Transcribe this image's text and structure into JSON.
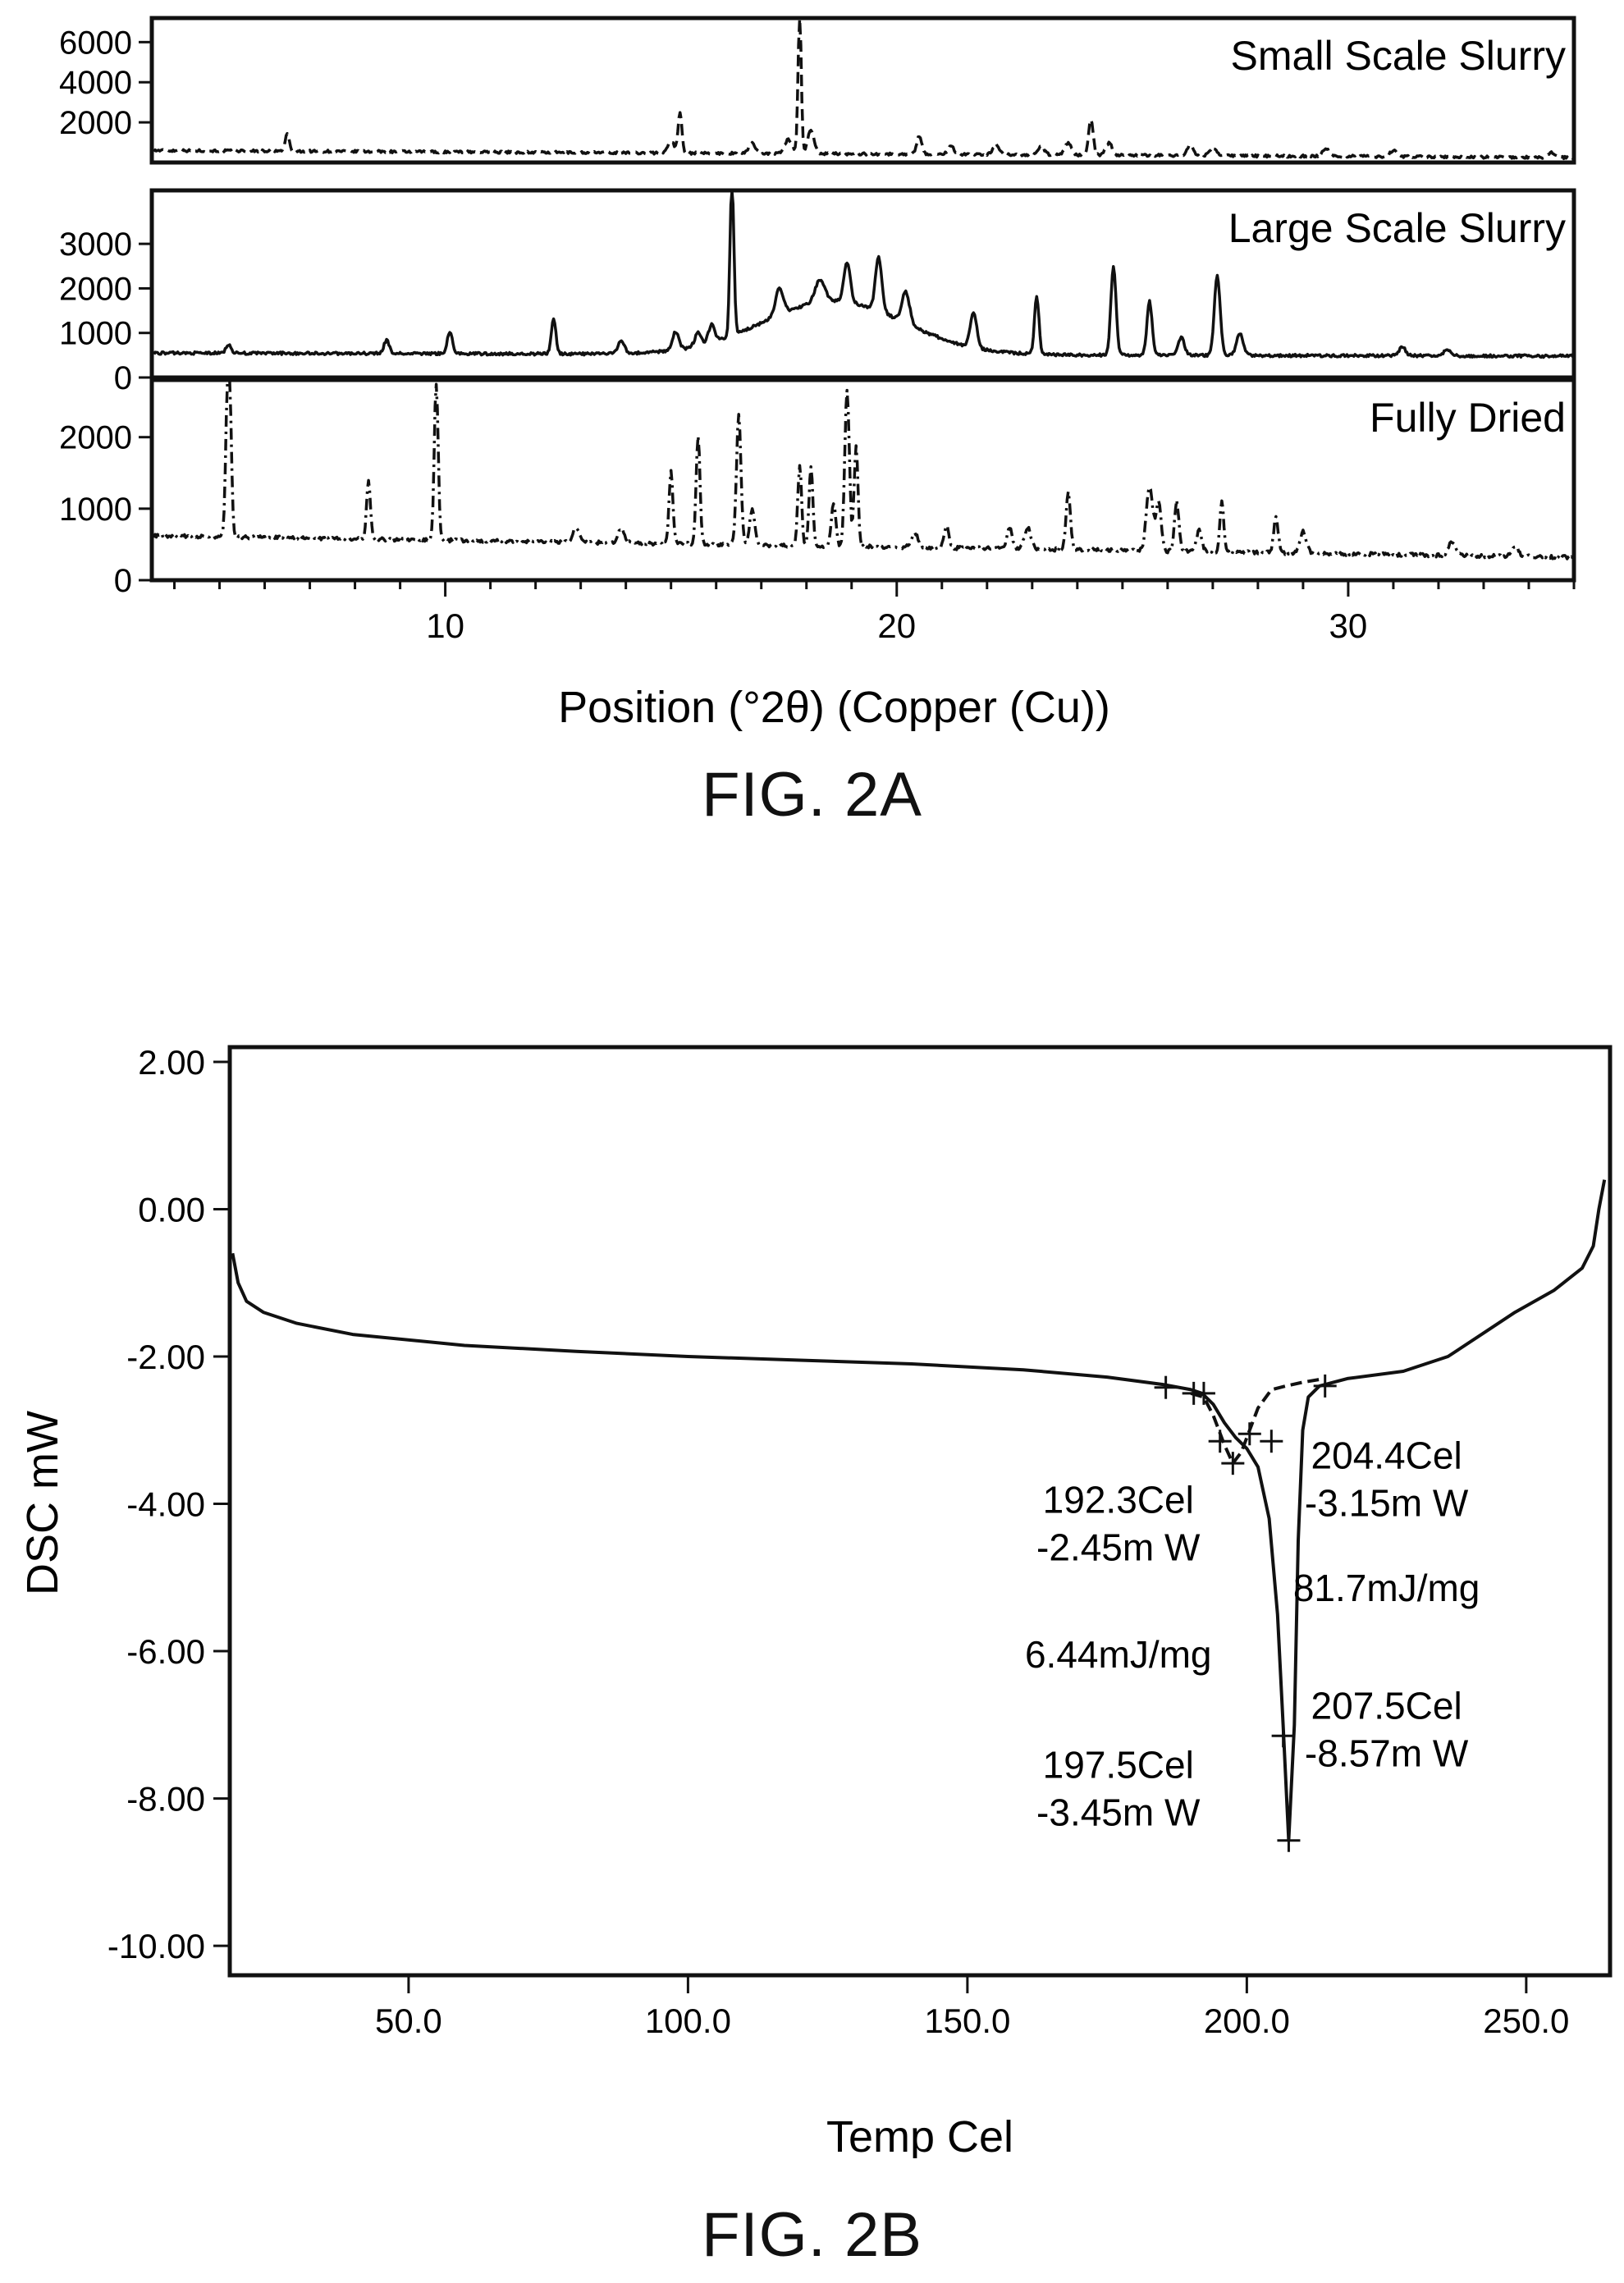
{
  "chart_data": [
    {
      "id": "fig-2a",
      "type": "line",
      "figure_label": "FIG. 2A",
      "xlabel": "Position (°2θ) (Copper (Cu))",
      "xlim": [
        3.5,
        35
      ],
      "xticks": [
        10,
        20,
        30
      ],
      "panels": [
        {
          "name": "Small Scale Slurry",
          "line_style": "dashed",
          "ylim": [
            0,
            7200
          ],
          "yticks": [
            2000,
            4000,
            6000
          ],
          "baseline": 600,
          "baseline_end": 250,
          "noise": 120,
          "peaks": [
            [
              6.5,
              900,
              0.06
            ],
            [
              15.0,
              600,
              0.1
            ],
            [
              15.2,
              2000,
              0.06
            ],
            [
              16.8,
              500,
              0.1
            ],
            [
              17.6,
              700,
              0.12
            ],
            [
              17.85,
              7000,
              0.05
            ],
            [
              18.1,
              1200,
              0.1
            ],
            [
              20.5,
              900,
              0.08
            ],
            [
              21.2,
              400,
              0.1
            ],
            [
              22.2,
              500,
              0.1
            ],
            [
              23.2,
              400,
              0.1
            ],
            [
              23.8,
              600,
              0.1
            ],
            [
              24.3,
              1800,
              0.07
            ],
            [
              24.7,
              600,
              0.1
            ],
            [
              26.5,
              500,
              0.1
            ],
            [
              27.0,
              400,
              0.1
            ],
            [
              29.5,
              400,
              0.1
            ],
            [
              31.0,
              300,
              0.1
            ],
            [
              34.5,
              250,
              0.1
            ]
          ]
        },
        {
          "name": "Large Scale Slurry",
          "line_style": "solid",
          "ylim": [
            0,
            4200
          ],
          "yticks": [
            0,
            1000,
            2000,
            3000
          ],
          "baseline": 550,
          "baseline_end": 480,
          "noise": 60,
          "halo": [
            [
              18.6,
              1200,
              2.2
            ]
          ],
          "peaks": [
            [
              5.2,
              200,
              0.08
            ],
            [
              8.7,
              300,
              0.08
            ],
            [
              10.1,
              500,
              0.08
            ],
            [
              12.4,
              800,
              0.07
            ],
            [
              13.9,
              300,
              0.1
            ],
            [
              15.1,
              400,
              0.1
            ],
            [
              15.6,
              300,
              0.1
            ],
            [
              15.9,
              400,
              0.1
            ],
            [
              16.35,
              3500,
              0.06
            ],
            [
              17.4,
              600,
              0.12
            ],
            [
              18.3,
              500,
              0.15
            ],
            [
              18.9,
              900,
              0.1
            ],
            [
              19.6,
              1200,
              0.1
            ],
            [
              20.2,
              700,
              0.12
            ],
            [
              21.7,
              800,
              0.1
            ],
            [
              23.1,
              1300,
              0.07
            ],
            [
              24.8,
              2000,
              0.08
            ],
            [
              25.6,
              1200,
              0.08
            ],
            [
              26.3,
              400,
              0.1
            ],
            [
              27.1,
              1800,
              0.09
            ],
            [
              27.6,
              500,
              0.1
            ],
            [
              31.2,
              200,
              0.1
            ],
            [
              32.2,
              150,
              0.1
            ]
          ]
        },
        {
          "name": "Fully Dried",
          "line_style": "dashdot",
          "ylim": [
            0,
            2800
          ],
          "yticks": [
            0,
            1000,
            2000
          ],
          "baseline": 620,
          "baseline_end": 320,
          "noise": 50,
          "peaks": [
            [
              5.2,
              2800,
              0.07
            ],
            [
              8.3,
              800,
              0.06
            ],
            [
              9.8,
              2200,
              0.06
            ],
            [
              12.9,
              200,
              0.1
            ],
            [
              13.9,
              200,
              0.1
            ],
            [
              15.0,
              1000,
              0.06
            ],
            [
              15.6,
              1500,
              0.06
            ],
            [
              16.5,
              1800,
              0.07
            ],
            [
              16.8,
              500,
              0.08
            ],
            [
              17.85,
              1100,
              0.06
            ],
            [
              18.1,
              1100,
              0.06
            ],
            [
              18.6,
              600,
              0.07
            ],
            [
              18.9,
              2200,
              0.07
            ],
            [
              19.1,
              1400,
              0.06
            ],
            [
              20.4,
              200,
              0.1
            ],
            [
              21.1,
              300,
              0.08
            ],
            [
              22.5,
              300,
              0.08
            ],
            [
              22.9,
              300,
              0.1
            ],
            [
              23.8,
              800,
              0.07
            ],
            [
              25.6,
              900,
              0.1
            ],
            [
              25.8,
              700,
              0.08
            ],
            [
              26.2,
              700,
              0.07
            ],
            [
              26.7,
              300,
              0.08
            ],
            [
              27.2,
              700,
              0.06
            ],
            [
              28.4,
              500,
              0.07
            ],
            [
              29.0,
              300,
              0.1
            ],
            [
              32.3,
              200,
              0.1
            ],
            [
              33.7,
              150,
              0.1
            ]
          ]
        }
      ]
    },
    {
      "id": "fig-2b",
      "type": "line",
      "figure_label": "FIG. 2B",
      "xlabel": "Temp Cel",
      "ylabel": "DSC mW",
      "xlim": [
        18,
        265
      ],
      "ylim": [
        -10.4,
        2.2
      ],
      "xticks": [
        50,
        100,
        150,
        200,
        250
      ],
      "xtick_labels": [
        "50.0",
        "100.0",
        "150.0",
        "200.0",
        "250.0"
      ],
      "yticks": [
        2,
        0,
        -2,
        -4,
        -6,
        -8,
        -10
      ],
      "ytick_labels": [
        "2.00",
        "0.00",
        "-2.00",
        "-4.00",
        "-6.00",
        "-8.00",
        "-10.00"
      ],
      "series": [
        {
          "line_style": "solid",
          "points": [
            [
              18.5,
              -0.6
            ],
            [
              19.5,
              -1.0
            ],
            [
              21,
              -1.25
            ],
            [
              24,
              -1.4
            ],
            [
              30,
              -1.55
            ],
            [
              40,
              -1.7
            ],
            [
              60,
              -1.85
            ],
            [
              80,
              -1.93
            ],
            [
              100,
              -2.0
            ],
            [
              120,
              -2.05
            ],
            [
              140,
              -2.1
            ],
            [
              160,
              -2.18
            ],
            [
              175,
              -2.28
            ],
            [
              185,
              -2.38
            ],
            [
              190,
              -2.45
            ],
            [
              192,
              -2.5
            ],
            [
              194,
              -2.65
            ],
            [
              196,
              -2.9
            ],
            [
              198,
              -3.1
            ],
            [
              200,
              -3.25
            ],
            [
              202,
              -3.5
            ],
            [
              204,
              -4.2
            ],
            [
              205.5,
              -5.5
            ],
            [
              206.5,
              -7.0
            ],
            [
              207.5,
              -8.57
            ],
            [
              208.5,
              -7.0
            ],
            [
              209.2,
              -4.5
            ],
            [
              210,
              -3.0
            ],
            [
              211,
              -2.55
            ],
            [
              213,
              -2.4
            ],
            [
              218,
              -2.3
            ],
            [
              228,
              -2.2
            ],
            [
              236,
              -2.0
            ],
            [
              242,
              -1.7
            ],
            [
              248,
              -1.4
            ],
            [
              255,
              -1.1
            ],
            [
              260,
              -0.8
            ],
            [
              262,
              -0.5
            ],
            [
              263,
              0.0
            ],
            [
              264,
              0.4
            ]
          ]
        },
        {
          "line_style": "dashed",
          "points": [
            [
              190,
              -2.5
            ],
            [
              192.3,
              -2.55
            ],
            [
              194,
              -2.8
            ],
            [
              196,
              -3.2
            ],
            [
              197.5,
              -3.45
            ],
            [
              199,
              -3.3
            ],
            [
              200.5,
              -3.0
            ],
            [
              202,
              -2.7
            ],
            [
              204.4,
              -2.45
            ],
            [
              207,
              -2.4
            ],
            [
              210,
              -2.35
            ],
            [
              214,
              -2.3
            ]
          ]
        }
      ],
      "markers": [
        [
          185.5,
          -2.42
        ],
        [
          190.5,
          -2.5
        ],
        [
          192.3,
          -2.5
        ],
        [
          195.2,
          -3.15
        ],
        [
          197.5,
          -3.45
        ],
        [
          200.5,
          -3.05
        ],
        [
          204.4,
          -3.15
        ],
        [
          206.5,
          -7.15
        ],
        [
          207.5,
          -8.57
        ],
        [
          214,
          -2.4
        ]
      ],
      "annotations": [
        {
          "lines": [
            "192.3Cel",
            "-2.45m W"
          ],
          "x": 177,
          "y": -4.12
        },
        {
          "lines": [
            "6.44mJ/mg"
          ],
          "x": 177,
          "y": -6.22
        },
        {
          "lines": [
            "197.5Cel",
            "-3.45m W"
          ],
          "x": 177,
          "y": -7.72
        },
        {
          "lines": [
            "204.4Cel",
            "-3.15m W"
          ],
          "x": 225,
          "y": -3.52
        },
        {
          "lines": [
            "81.7mJ/mg"
          ],
          "x": 225,
          "y": -5.32
        },
        {
          "lines": [
            "207.5Cel",
            "-8.57m W"
          ],
          "x": 225,
          "y": -6.92
        }
      ]
    }
  ]
}
